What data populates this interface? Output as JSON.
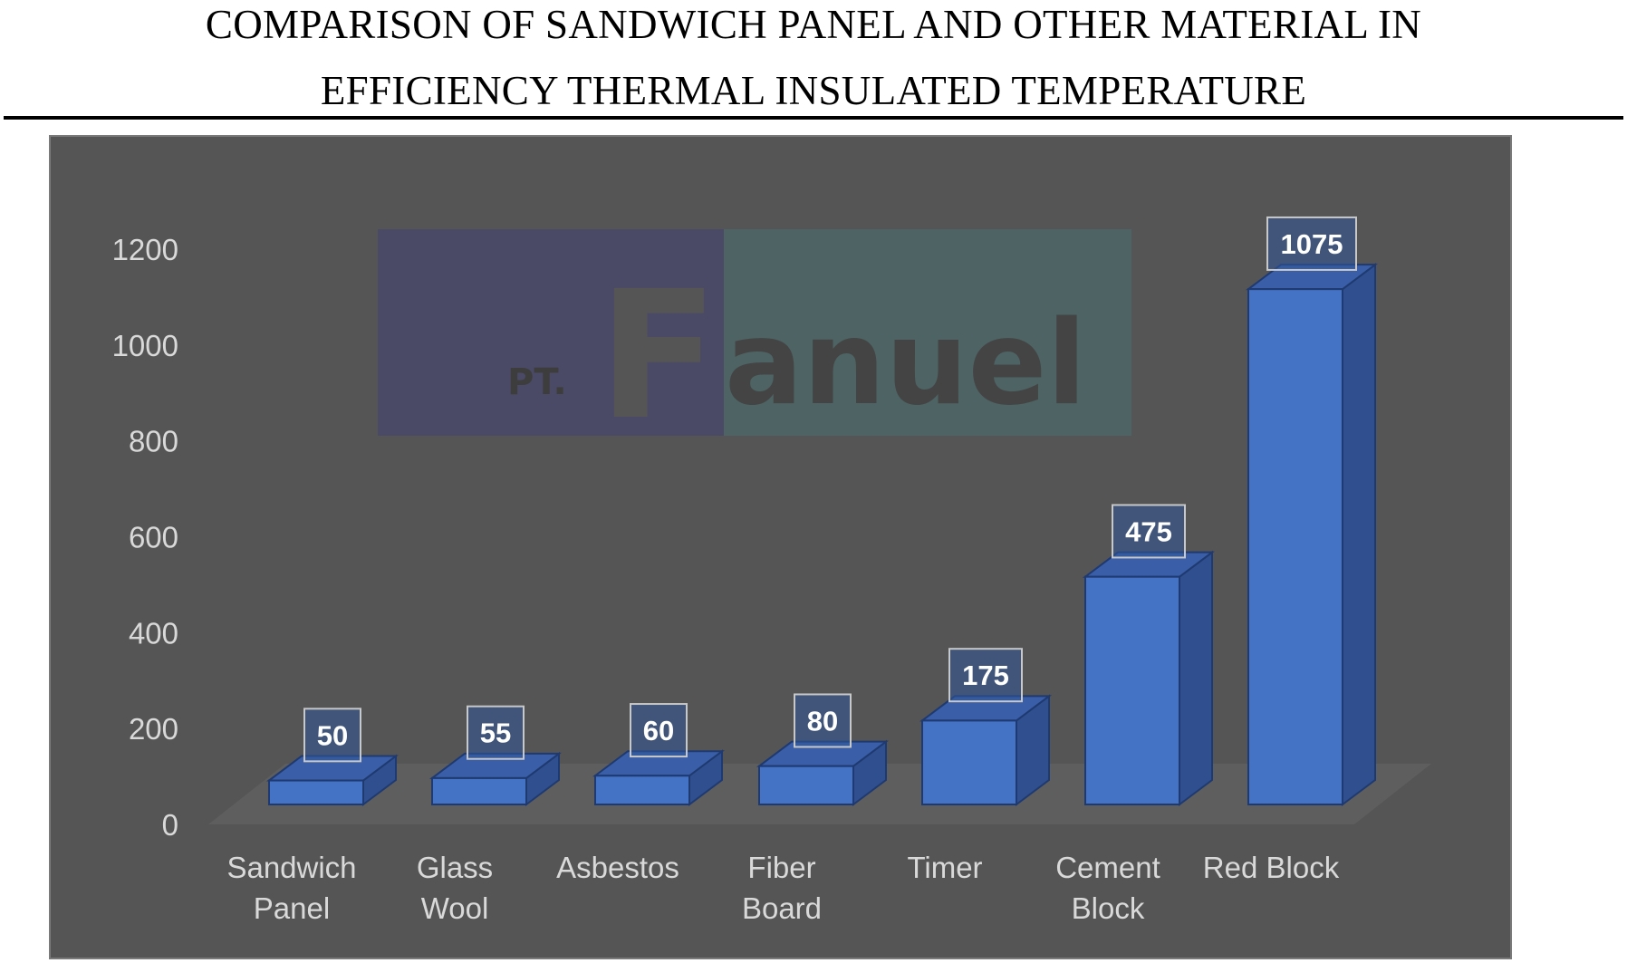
{
  "page": {
    "title_line1": "COMPARISON OF SANDWICH PANEL AND OTHER MATERIAL IN",
    "title_line2": "EFFICIENCY THERMAL INSULATED TEMPERATURE"
  },
  "watermark": {
    "prefix": "PT.",
    "big_letter": "F",
    "rest": "anuel"
  },
  "colors": {
    "background": "#555555",
    "bar_front": "#4472C4",
    "bar_side": "#2F4F8F",
    "bar_top": "#3A5FA8",
    "axis_text": "#D9D9D9",
    "label_text": "#FFFFFF",
    "floor": "#5E5E5E",
    "watermark_left": "#4A4A66",
    "watermark_right": "#4E6363"
  },
  "chart_data": {
    "type": "bar",
    "style": "3d-column",
    "title": "COMPARISON OF SANDWICH PANEL AND OTHER MATERIAL IN EFFICIENCY THERMAL INSULATED TEMPERATURE",
    "categories": [
      [
        "Sandwich",
        "Panel"
      ],
      [
        "Glass",
        "Wool"
      ],
      [
        "Asbestos"
      ],
      [
        "Fiber",
        "Board"
      ],
      [
        "Timer"
      ],
      [
        "Cement",
        "Block"
      ],
      [
        "Red Block"
      ]
    ],
    "values": [
      50,
      55,
      60,
      80,
      175,
      475,
      1075
    ],
    "data_labels": [
      "50",
      "55",
      "60",
      "80",
      "175",
      "475",
      "1075"
    ],
    "yticks": [
      "0",
      "200",
      "400",
      "600",
      "800",
      "1000",
      "1200"
    ],
    "ylim": [
      0,
      1200
    ],
    "grid": false,
    "legend": "none"
  }
}
